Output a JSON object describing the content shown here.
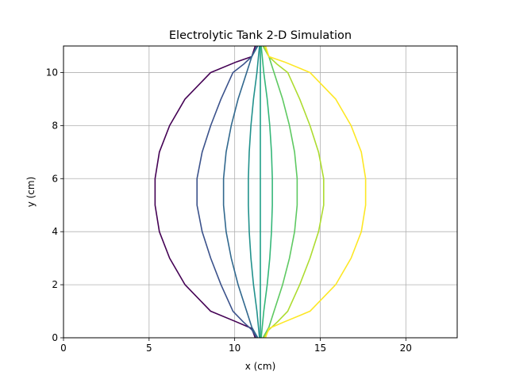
{
  "chart_data": {
    "type": "line",
    "title": "Electrolytic Tank 2-D Simulation",
    "xlabel": "x (cm)",
    "ylabel": "y (cm)",
    "xlim": [
      0,
      23
    ],
    "ylim": [
      0,
      11
    ],
    "xticks": [
      0,
      5,
      10,
      15,
      20
    ],
    "yticks": [
      0,
      2,
      4,
      6,
      8,
      10
    ],
    "grid": true,
    "series": [
      {
        "color": "#440154",
        "points": [
          [
            11.2,
            11
          ],
          [
            11.0,
            10.6
          ],
          [
            10.1,
            10.4
          ],
          [
            8.6,
            10
          ],
          [
            7.1,
            9
          ],
          [
            6.2,
            8
          ],
          [
            5.6,
            7
          ],
          [
            5.35,
            6
          ],
          [
            5.35,
            5
          ],
          [
            5.6,
            4
          ],
          [
            6.2,
            3
          ],
          [
            7.1,
            2
          ],
          [
            8.6,
            1
          ],
          [
            10.1,
            0.6
          ],
          [
            11.0,
            0.35
          ],
          [
            11.2,
            0
          ]
        ]
      },
      {
        "color": "#3b528b",
        "points": [
          [
            11.3,
            11
          ],
          [
            11.0,
            10.6
          ],
          [
            10.5,
            10.3
          ],
          [
            9.9,
            10
          ],
          [
            9.2,
            9
          ],
          [
            8.6,
            8
          ],
          [
            8.1,
            7
          ],
          [
            7.8,
            6
          ],
          [
            7.8,
            5
          ],
          [
            8.1,
            4
          ],
          [
            8.6,
            3
          ],
          [
            9.2,
            2
          ],
          [
            9.9,
            1
          ],
          [
            10.5,
            0.6
          ],
          [
            11.0,
            0.3
          ],
          [
            11.3,
            0
          ]
        ]
      },
      {
        "color": "#31688e",
        "points": [
          [
            11.35,
            11
          ],
          [
            11.0,
            10.6
          ],
          [
            10.7,
            10
          ],
          [
            10.2,
            9
          ],
          [
            9.8,
            8
          ],
          [
            9.5,
            7
          ],
          [
            9.35,
            6
          ],
          [
            9.35,
            5
          ],
          [
            9.5,
            4
          ],
          [
            9.8,
            3
          ],
          [
            10.2,
            2
          ],
          [
            10.7,
            1
          ],
          [
            11.0,
            0.4
          ],
          [
            11.35,
            0
          ]
        ]
      },
      {
        "color": "#21918c",
        "points": [
          [
            11.45,
            11
          ],
          [
            11.3,
            10
          ],
          [
            11.1,
            9
          ],
          [
            10.95,
            8
          ],
          [
            10.85,
            7
          ],
          [
            10.8,
            6
          ],
          [
            10.8,
            5
          ],
          [
            10.85,
            4
          ],
          [
            10.95,
            3
          ],
          [
            11.1,
            2
          ],
          [
            11.3,
            1
          ],
          [
            11.45,
            0
          ]
        ]
      },
      {
        "color": "#1f9e89",
        "points": [
          [
            11.5,
            11
          ],
          [
            11.5,
            10
          ],
          [
            11.5,
            9
          ],
          [
            11.5,
            8
          ],
          [
            11.5,
            7
          ],
          [
            11.5,
            6
          ],
          [
            11.5,
            5
          ],
          [
            11.5,
            4
          ],
          [
            11.5,
            3
          ],
          [
            11.5,
            2
          ],
          [
            11.5,
            1
          ],
          [
            11.5,
            0
          ]
        ]
      },
      {
        "color": "#35b779",
        "points": [
          [
            11.55,
            11
          ],
          [
            11.7,
            10
          ],
          [
            11.9,
            9
          ],
          [
            12.05,
            8
          ],
          [
            12.15,
            7
          ],
          [
            12.2,
            6
          ],
          [
            12.2,
            5
          ],
          [
            12.15,
            4
          ],
          [
            12.05,
            3
          ],
          [
            11.9,
            2
          ],
          [
            11.7,
            1
          ],
          [
            11.55,
            0
          ]
        ]
      },
      {
        "color": "#5ec962",
        "points": [
          [
            11.65,
            11
          ],
          [
            12.0,
            10.6
          ],
          [
            12.3,
            10
          ],
          [
            12.8,
            9
          ],
          [
            13.2,
            8
          ],
          [
            13.5,
            7
          ],
          [
            13.65,
            6
          ],
          [
            13.65,
            5
          ],
          [
            13.5,
            4
          ],
          [
            13.2,
            3
          ],
          [
            12.8,
            2
          ],
          [
            12.3,
            1
          ],
          [
            12.0,
            0.4
          ],
          [
            11.65,
            0
          ]
        ]
      },
      {
        "color": "#addc30",
        "points": [
          [
            11.7,
            11
          ],
          [
            12.0,
            10.6
          ],
          [
            12.5,
            10.3
          ],
          [
            13.1,
            10
          ],
          [
            13.8,
            9
          ],
          [
            14.4,
            8
          ],
          [
            14.9,
            7
          ],
          [
            15.2,
            6
          ],
          [
            15.2,
            5
          ],
          [
            14.9,
            4
          ],
          [
            14.4,
            3
          ],
          [
            13.8,
            2
          ],
          [
            13.1,
            1
          ],
          [
            12.5,
            0.6
          ],
          [
            12.0,
            0.3
          ],
          [
            11.7,
            0
          ]
        ]
      },
      {
        "color": "#fde725",
        "points": [
          [
            11.8,
            11
          ],
          [
            12.0,
            10.6
          ],
          [
            12.9,
            10.4
          ],
          [
            14.4,
            10
          ],
          [
            15.9,
            9
          ],
          [
            16.8,
            8
          ],
          [
            17.4,
            7
          ],
          [
            17.65,
            6
          ],
          [
            17.65,
            5
          ],
          [
            17.4,
            4
          ],
          [
            16.8,
            3
          ],
          [
            15.9,
            2
          ],
          [
            14.4,
            1
          ],
          [
            12.9,
            0.6
          ],
          [
            12.0,
            0.35
          ],
          [
            11.8,
            0
          ]
        ]
      }
    ]
  }
}
